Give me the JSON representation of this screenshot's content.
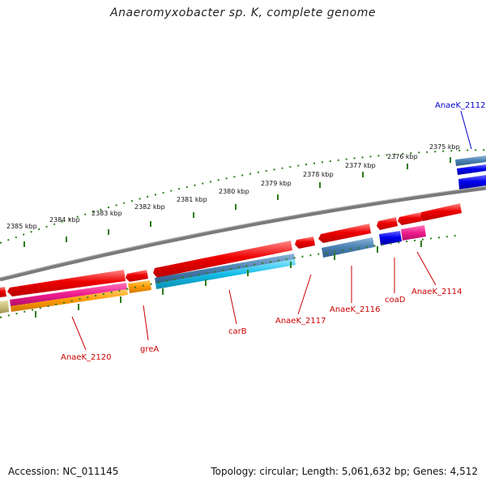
{
  "title": "Anaeromyxobacter sp. K, complete genome",
  "footer": {
    "accession": "Accession: NC_011145",
    "summary": "Topology: circular; Length: 5,061,632 bp; Genes: 4,512"
  },
  "scale_labels": [
    "2375 kbp",
    "2376 kbp",
    "2377 kbp",
    "2378 kbp",
    "2379 kbp",
    "2380 kbp",
    "2381 kbp",
    "2382 kbp",
    "2383 kbp",
    "2384 kbp",
    "2385 kbp"
  ],
  "gene_labels": {
    "anaek_2112": "AnaeK_2112",
    "anaek_2114": "AnaeK_2114",
    "coad": "coaD",
    "anaek_2116": "AnaeK_2116",
    "anaek_2117": "AnaeK_2117",
    "carb": "carB",
    "grea": "greA",
    "anaek_2120": "AnaeK_2120"
  },
  "colors": {
    "cds_red": "#ee0000",
    "steelblue": "#4a7fb0",
    "blue": "#0000ee",
    "magenta": "#ee1a8c",
    "orange": "#ff9900",
    "cyan": "#12bde8",
    "olive": "#c8c07a",
    "backbone": "#888888",
    "tick_green": "#2e7d1b",
    "label_red": "#cc0000",
    "label_blue": "#0000cc"
  }
}
